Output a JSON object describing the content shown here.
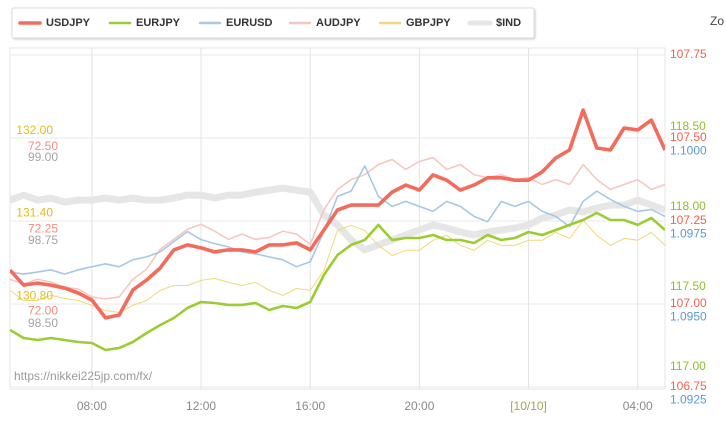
{
  "chart_data": {
    "type": "line",
    "zoom_label": "Zo",
    "watermark": "https://nikkei225jp.com/fx/",
    "x": [
      5,
      5.5,
      6,
      6.5,
      7,
      7.5,
      8,
      8.5,
      9,
      9.5,
      10,
      10.5,
      11,
      11.5,
      12,
      12.5,
      13,
      13.5,
      14,
      14.5,
      15,
      15.5,
      16,
      16.5,
      17,
      17.5,
      18,
      18.5,
      19,
      19.5,
      20,
      20.5,
      21,
      21.5,
      22,
      22.5,
      23,
      23.5,
      24,
      24.5,
      25,
      25.5,
      26,
      26.5,
      27,
      27.5,
      28,
      28.5,
      29
    ],
    "xlim": [
      5,
      29
    ],
    "xticks": [
      {
        "value": 8,
        "label": "08:00"
      },
      {
        "value": 12,
        "label": "12:00"
      },
      {
        "value": 16,
        "label": "16:00"
      },
      {
        "value": 20,
        "label": "20:00"
      },
      {
        "value": 24,
        "label": "[10/10]"
      },
      {
        "value": 28,
        "label": "04:00"
      }
    ],
    "grid": true,
    "series": [
      {
        "name": "$IND",
        "color": "#e6e6e6",
        "axis_side": "left",
        "ylim": [
          98.31,
          99.31
        ],
        "yticks": [
          {
            "value": 98.5,
            "label": "98.50"
          },
          98.75,
          {
            "value": 99,
            "label": "99.00"
          }
        ],
        "values": [
          98.873,
          98.888,
          98.873,
          98.879,
          98.867,
          98.873,
          98.873,
          98.879,
          98.873,
          98.879,
          98.873,
          98.873,
          98.879,
          98.888,
          98.888,
          98.879,
          98.888,
          98.888,
          98.897,
          98.903,
          98.909,
          98.903,
          98.897,
          98.828,
          98.798,
          98.753,
          98.723,
          98.738,
          98.753,
          98.768,
          98.783,
          98.798,
          98.789,
          98.777,
          98.768,
          98.777,
          98.783,
          98.789,
          98.798,
          98.819,
          98.828,
          98.843,
          98.837,
          98.849,
          98.858,
          98.858,
          98.873,
          98.858,
          98.843
        ]
      },
      {
        "name": "GBPJPY",
        "color": "#f3d778",
        "axis_side": "left",
        "ylim": [
          130.14,
          132.55
        ],
        "yticks": [
          {
            "value": 130.8,
            "label": "130.80"
          },
          {
            "value": 131.4,
            "label": "131.40"
          },
          {
            "value": 132,
            "label": "132.00"
          }
        ],
        "values": [
          130.841,
          130.768,
          130.768,
          130.805,
          130.783,
          130.768,
          130.732,
          130.695,
          130.681,
          130.732,
          130.768,
          130.841,
          130.877,
          130.877,
          130.914,
          130.928,
          130.899,
          130.877,
          130.899,
          130.841,
          130.805,
          130.855,
          130.841,
          130.986,
          131.277,
          131.314,
          131.277,
          131.168,
          131.095,
          131.132,
          131.132,
          131.205,
          131.241,
          131.168,
          131.132,
          131.205,
          131.168,
          131.168,
          131.205,
          131.205,
          131.263,
          131.219,
          131.35,
          131.241,
          131.168,
          131.219,
          131.205,
          131.263,
          131.168
        ]
      },
      {
        "name": "AUDJPY",
        "color": "#f6c5bd",
        "axis_side": "left",
        "ylim": [
          71.77,
          72.78
        ],
        "yticks": [
          {
            "value": 72,
            "label": "72.00"
          },
          72.25,
          {
            "value": 72.5,
            "label": "72.50"
          }
        ],
        "values": [
          72.098,
          72.083,
          72.098,
          72.089,
          72.074,
          72.068,
          72.044,
          72.038,
          72.044,
          72.098,
          72.128,
          72.189,
          72.219,
          72.25,
          72.265,
          72.244,
          72.219,
          72.235,
          72.219,
          72.225,
          72.244,
          72.235,
          72.204,
          72.31,
          72.371,
          72.401,
          72.416,
          72.447,
          72.462,
          72.432,
          72.456,
          72.468,
          72.432,
          72.447,
          72.416,
          72.407,
          72.416,
          72.401,
          72.407,
          72.386,
          72.401,
          72.386,
          72.447,
          72.401,
          72.371,
          72.386,
          72.401,
          72.371,
          72.386
        ]
      },
      {
        "name": "EURUSD",
        "color": "#a7c7e7",
        "axis_side": "right",
        "ylim": [
          1.0929,
          1.1029
        ],
        "yticks": [
          1.0925,
          {
            "value": 1.095,
            "label": "1.0950"
          },
          1.0975,
          {
            "value": 1.1,
            "label": "1.1000"
          }
        ],
        "values": [
          1.09636,
          1.0963,
          1.09636,
          1.09643,
          1.0963,
          1.09643,
          1.09652,
          1.09661,
          1.09652,
          1.09673,
          1.09682,
          1.09697,
          1.09728,
          1.09758,
          1.09734,
          1.09722,
          1.09712,
          1.09697,
          1.09691,
          1.09682,
          1.09673,
          1.09652,
          1.09667,
          1.09758,
          1.09864,
          1.0988,
          1.09956,
          1.09864,
          1.09834,
          1.09849,
          1.09834,
          1.09819,
          1.09849,
          1.09834,
          1.09804,
          1.09788,
          1.09849,
          1.09834,
          1.09849,
          1.09819,
          1.09804,
          1.09773,
          1.09849,
          1.0988,
          1.09855,
          1.09834,
          1.09819,
          1.09825,
          1.09804
        ]
      },
      {
        "name": "EURJPY",
        "color": "#9ccc35",
        "axis_side": "right",
        "ylim": [
          116.875,
          118.95
        ],
        "yticks": [
          {
            "value": 117,
            "label": "117.00"
          },
          {
            "value": 117.5,
            "label": "117.50"
          },
          {
            "value": 118,
            "label": "118.00"
          },
          {
            "value": 118.5,
            "label": "118.50"
          }
        ],
        "values": [
          117.231,
          117.181,
          117.169,
          117.181,
          117.169,
          117.156,
          117.15,
          117.106,
          117.119,
          117.156,
          117.212,
          117.262,
          117.306,
          117.369,
          117.406,
          117.4,
          117.388,
          117.388,
          117.4,
          117.356,
          117.381,
          117.369,
          117.406,
          117.575,
          117.7,
          117.763,
          117.794,
          117.888,
          117.794,
          117.806,
          117.806,
          117.825,
          117.794,
          117.794,
          117.775,
          117.825,
          117.794,
          117.806,
          117.844,
          117.825,
          117.856,
          117.888,
          117.919,
          117.963,
          117.919,
          117.919,
          117.888,
          117.931,
          117.856
        ]
      },
      {
        "name": "USDJPY",
        "color": "#f36b5b",
        "axis_side": "right",
        "ylim": [
          106.75,
          107.75
        ],
        "yticks": [
          106.75,
          {
            "value": 107,
            "label": "107.00"
          },
          107.25,
          {
            "value": 107.5,
            "label": "107.50"
          },
          107.75
        ],
        "values": [
          107.102,
          107.057,
          107.063,
          107.057,
          107.048,
          107.033,
          107.012,
          106.958,
          106.967,
          107.042,
          107.072,
          107.108,
          107.163,
          107.178,
          107.169,
          107.157,
          107.163,
          107.163,
          107.157,
          107.178,
          107.178,
          107.184,
          107.163,
          107.223,
          107.283,
          107.298,
          107.298,
          107.298,
          107.337,
          107.358,
          107.343,
          107.389,
          107.373,
          107.343,
          107.358,
          107.38,
          107.38,
          107.373,
          107.373,
          107.398,
          107.44,
          107.464,
          107.584,
          107.47,
          107.464,
          107.53,
          107.524,
          107.554,
          107.464
        ]
      }
    ]
  }
}
